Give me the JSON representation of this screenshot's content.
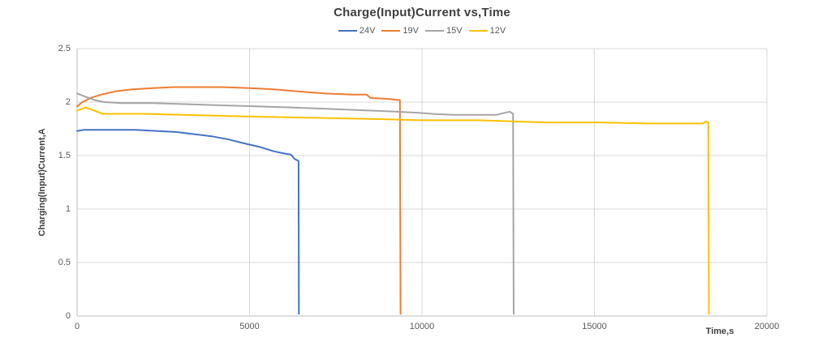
{
  "chart_data": {
    "type": "line",
    "title": "Charge(Input)Current vs,Time",
    "xlabel": "Time,s",
    "ylabel": "Charging(Input)Current,A",
    "xlim": [
      0,
      20000
    ],
    "ylim": [
      0,
      2.5
    ],
    "x_ticks": [
      0,
      5000,
      10000,
      15000,
      20000
    ],
    "x_tick_labels": [
      "0",
      "5000",
      "10000",
      "15000",
      "20000"
    ],
    "y_ticks": [
      0,
      0.5,
      1,
      1.5,
      2,
      2.5
    ],
    "y_tick_labels": [
      "0",
      "0.5",
      "1",
      "1.5",
      "2",
      "2.5"
    ],
    "grid": true,
    "legend_position": "top",
    "gridline_color": "#D9D9D9",
    "axis_color": "#BFBFBF",
    "series": [
      {
        "name": "24V",
        "color": "#4472C4",
        "points": [
          [
            0,
            1.73
          ],
          [
            200,
            1.74
          ],
          [
            900,
            1.74
          ],
          [
            1700,
            1.74
          ],
          [
            2300,
            1.73
          ],
          [
            2900,
            1.72
          ],
          [
            3400,
            1.7
          ],
          [
            3900,
            1.68
          ],
          [
            4400,
            1.65
          ],
          [
            4900,
            1.61
          ],
          [
            5300,
            1.58
          ],
          [
            5700,
            1.54
          ],
          [
            6000,
            1.52
          ],
          [
            6200,
            1.51
          ],
          [
            6300,
            1.47
          ],
          [
            6420,
            1.45
          ],
          [
            6430,
            0.02
          ]
        ]
      },
      {
        "name": "19V",
        "color": "#ED7D31",
        "points": [
          [
            0,
            1.96
          ],
          [
            150,
            2.0
          ],
          [
            400,
            2.04
          ],
          [
            700,
            2.07
          ],
          [
            1100,
            2.1
          ],
          [
            1600,
            2.12
          ],
          [
            2200,
            2.13
          ],
          [
            2800,
            2.14
          ],
          [
            4200,
            2.14
          ],
          [
            5000,
            2.13
          ],
          [
            5700,
            2.12
          ],
          [
            6400,
            2.1
          ],
          [
            7200,
            2.08
          ],
          [
            8000,
            2.07
          ],
          [
            8400,
            2.07
          ],
          [
            8500,
            2.04
          ],
          [
            9000,
            2.03
          ],
          [
            9300,
            2.02
          ],
          [
            9360,
            2.02
          ],
          [
            9380,
            0.02
          ]
        ]
      },
      {
        "name": "15V",
        "color": "#A5A5A5",
        "points": [
          [
            0,
            2.08
          ],
          [
            250,
            2.05
          ],
          [
            500,
            2.02
          ],
          [
            800,
            2.0
          ],
          [
            1300,
            1.99
          ],
          [
            2200,
            1.99
          ],
          [
            3200,
            1.98
          ],
          [
            4200,
            1.97
          ],
          [
            5200,
            1.96
          ],
          [
            6200,
            1.95
          ],
          [
            7000,
            1.94
          ],
          [
            7800,
            1.93
          ],
          [
            8600,
            1.92
          ],
          [
            9300,
            1.91
          ],
          [
            9900,
            1.9
          ],
          [
            10300,
            1.89
          ],
          [
            10900,
            1.88
          ],
          [
            11800,
            1.88
          ],
          [
            12150,
            1.88
          ],
          [
            12400,
            1.9
          ],
          [
            12550,
            1.91
          ],
          [
            12640,
            1.89
          ],
          [
            12660,
            0.02
          ]
        ]
      },
      {
        "name": "12V",
        "color": "#FFC000",
        "points": [
          [
            0,
            1.92
          ],
          [
            250,
            1.95
          ],
          [
            500,
            1.92
          ],
          [
            750,
            1.89
          ],
          [
            1900,
            1.89
          ],
          [
            3100,
            1.88
          ],
          [
            4400,
            1.87
          ],
          [
            5800,
            1.86
          ],
          [
            7300,
            1.85
          ],
          [
            8900,
            1.84
          ],
          [
            10000,
            1.83
          ],
          [
            11600,
            1.83
          ],
          [
            12600,
            1.82
          ],
          [
            13600,
            1.81
          ],
          [
            15200,
            1.81
          ],
          [
            16500,
            1.8
          ],
          [
            17900,
            1.8
          ],
          [
            18150,
            1.8
          ],
          [
            18230,
            1.82
          ],
          [
            18300,
            1.81
          ],
          [
            18320,
            0.02
          ]
        ]
      }
    ]
  }
}
